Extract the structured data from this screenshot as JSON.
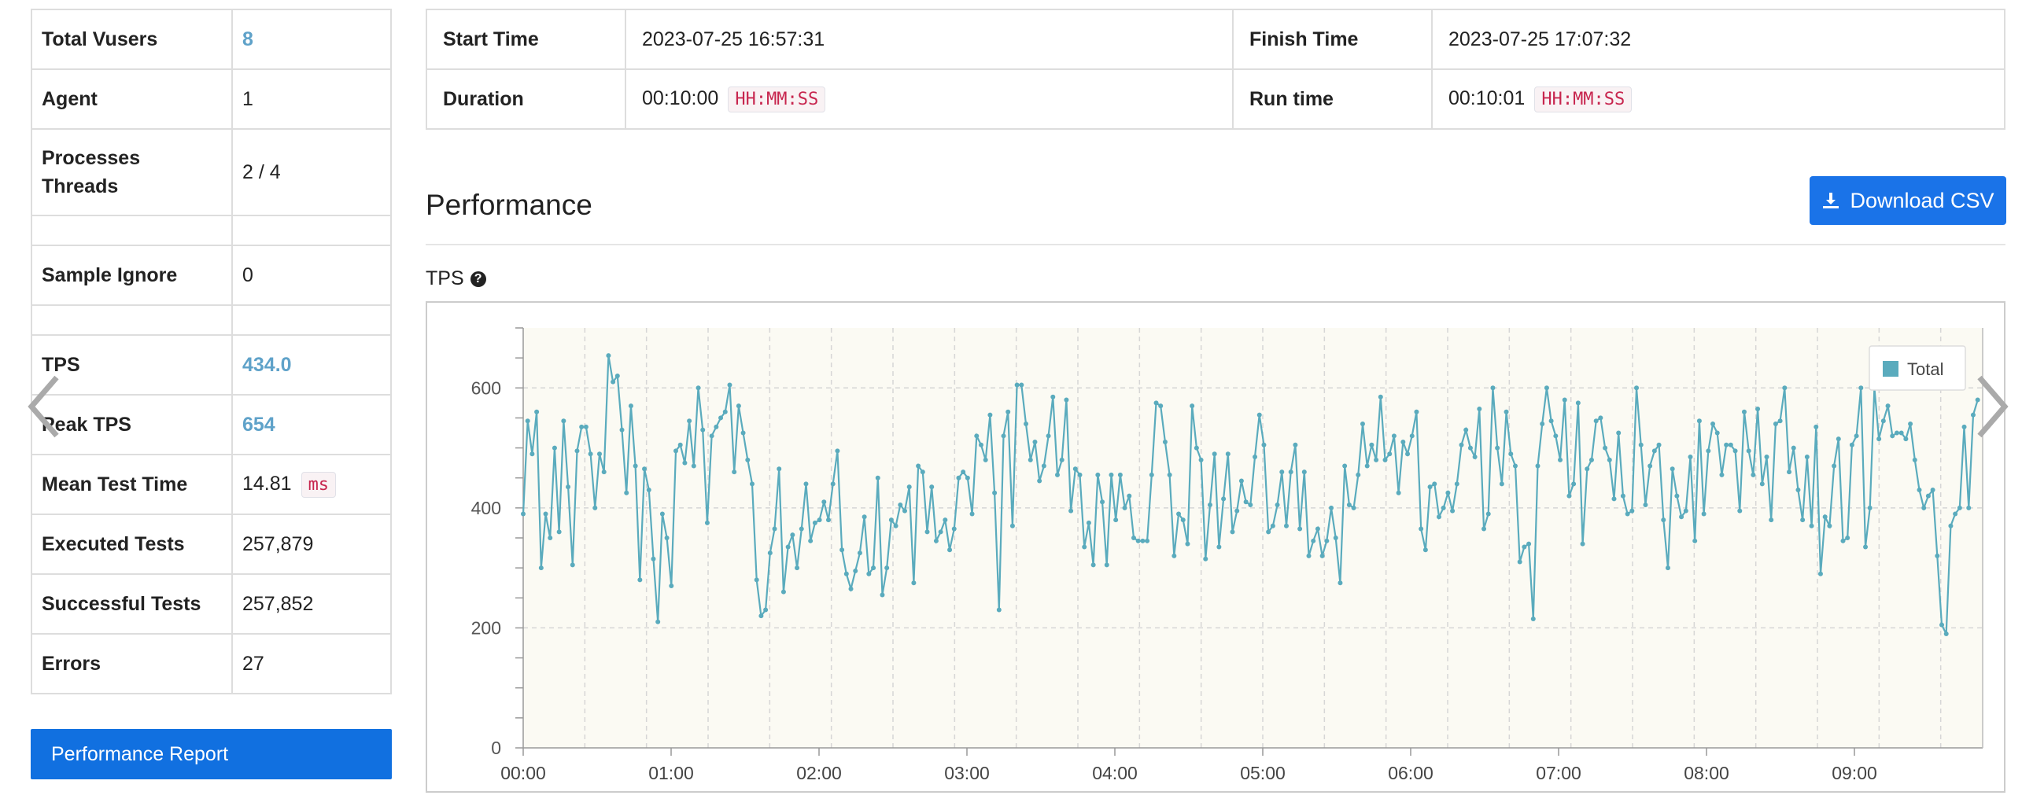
{
  "summary": {
    "rows": [
      {
        "label": "Total Vusers",
        "value": "8",
        "highlight": true
      },
      {
        "label": "Agent",
        "value": "1"
      },
      {
        "label": "Processes\nThreads",
        "value": "2 / 4"
      },
      {
        "label": "Sample Ignore",
        "value": "0"
      },
      {
        "label": "TPS",
        "value": "434.0",
        "highlight": true
      },
      {
        "label": "Peak TPS",
        "value": "654",
        "highlight": true
      },
      {
        "label": "Mean Test Time",
        "value": "14.81",
        "unit": "ms"
      },
      {
        "label": "Executed Tests",
        "value": "257,879"
      },
      {
        "label": "Successful Tests",
        "value": "257,852"
      },
      {
        "label": "Errors",
        "value": "27"
      }
    ],
    "report_button": "Performance Report"
  },
  "times": {
    "start_label": "Start Time",
    "start_value": "2023-07-25 16:57:31",
    "finish_label": "Finish Time",
    "finish_value": "2023-07-25 17:07:32",
    "duration_label": "Duration",
    "duration_value": "00:10:00",
    "duration_unit": "HH:MM:SS",
    "runtime_label": "Run time",
    "runtime_value": "00:10:01",
    "runtime_unit": "HH:MM:SS"
  },
  "performance": {
    "title": "Performance",
    "download_button": "Download CSV",
    "tps_label": "TPS"
  },
  "colors": {
    "accent": "#1a73e8",
    "highlight_text": "#5fa2c9",
    "series": "#5aabbd",
    "plot_bg": "#fbfaf3"
  },
  "icons": {
    "download": "download-icon",
    "help": "question-circle-icon",
    "prev": "chevron-left-icon",
    "next": "chevron-right-icon"
  },
  "chart_data": {
    "type": "line",
    "xlabel": "",
    "ylabel": "",
    "ylim": [
      0,
      700
    ],
    "yticks": [
      0,
      200,
      400,
      600
    ],
    "xticks": [
      "00:00",
      "01:00",
      "02:00",
      "03:00",
      "04:00",
      "05:00",
      "06:00",
      "07:00",
      "08:00",
      "09:00"
    ],
    "x_range_seconds": [
      0,
      590
    ],
    "legend_position": "top-right",
    "grid": true,
    "series": [
      {
        "name": "Total",
        "values": [
          390,
          545,
          490,
          560,
          300,
          390,
          350,
          500,
          360,
          545,
          435,
          305,
          495,
          535,
          535,
          490,
          400,
          490,
          460,
          654,
          610,
          620,
          530,
          425,
          570,
          470,
          280,
          465,
          430,
          315,
          210,
          390,
          350,
          270,
          495,
          505,
          475,
          545,
          470,
          600,
          530,
          375,
          520,
          535,
          550,
          560,
          605,
          460,
          570,
          525,
          480,
          440,
          280,
          220,
          230,
          325,
          365,
          465,
          260,
          335,
          355,
          300,
          365,
          440,
          345,
          375,
          380,
          410,
          380,
          440,
          495,
          330,
          290,
          265,
          295,
          325,
          385,
          290,
          300,
          450,
          255,
          300,
          380,
          370,
          405,
          395,
          435,
          275,
          470,
          460,
          360,
          435,
          345,
          360,
          380,
          330,
          365,
          450,
          460,
          450,
          390,
          520,
          505,
          480,
          555,
          425,
          230,
          520,
          560,
          370,
          605,
          605,
          540,
          480,
          510,
          445,
          470,
          520,
          585,
          455,
          480,
          580,
          395,
          465,
          455,
          335,
          375,
          305,
          455,
          410,
          305,
          455,
          380,
          455,
          400,
          420,
          350,
          345,
          345,
          345,
          455,
          575,
          570,
          510,
          455,
          320,
          390,
          380,
          340,
          570,
          500,
          480,
          315,
          405,
          490,
          335,
          415,
          490,
          360,
          395,
          445,
          410,
          405,
          485,
          555,
          505,
          360,
          370,
          405,
          460,
          370,
          460,
          505,
          365,
          460,
          320,
          345,
          365,
          320,
          345,
          400,
          350,
          275,
          470,
          405,
          400,
          455,
          540,
          470,
          505,
          480,
          585,
          480,
          490,
          520,
          425,
          510,
          490,
          520,
          560,
          365,
          330,
          435,
          440,
          385,
          400,
          425,
          395,
          440,
          505,
          530,
          500,
          485,
          565,
          365,
          390,
          600,
          500,
          440,
          560,
          490,
          470,
          310,
          335,
          340,
          215,
          470,
          540,
          600,
          545,
          520,
          480,
          580,
          420,
          440,
          575,
          340,
          465,
          480,
          545,
          550,
          500,
          480,
          415,
          525,
          420,
          390,
          395,
          600,
          505,
          405,
          470,
          495,
          505,
          380,
          300,
          465,
          420,
          385,
          395,
          485,
          345,
          545,
          390,
          495,
          540,
          525,
          455,
          505,
          505,
          495,
          395,
          560,
          495,
          455,
          565,
          440,
          485,
          380,
          540,
          545,
          600,
          460,
          500,
          430,
          380,
          485,
          370,
          535,
          290,
          385,
          370,
          470,
          515,
          345,
          350,
          505,
          520,
          600,
          335,
          400,
          600,
          515,
          545,
          570,
          520,
          525,
          525,
          515,
          540,
          480,
          430,
          400,
          420,
          430,
          320,
          205,
          190,
          370,
          390,
          400,
          535,
          400,
          555,
          580
        ]
      }
    ]
  }
}
